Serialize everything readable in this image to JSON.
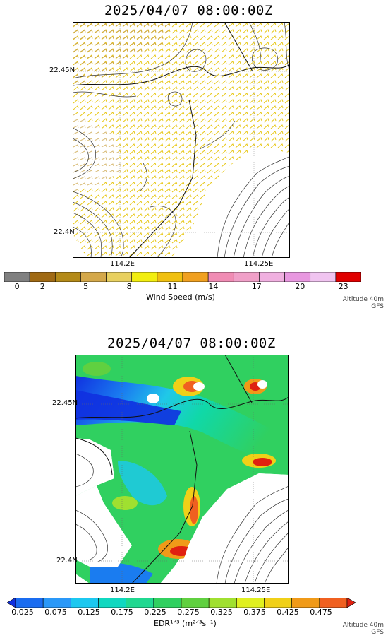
{
  "panels": [
    {
      "title": "2025/04/07  08:00:00Z",
      "lat_labels": [
        "22.45N",
        "22.4N"
      ],
      "lon_labels": [
        "114.2E",
        "114.25E"
      ],
      "colorbar": {
        "ticks": [
          "0",
          "2",
          "5",
          "8",
          "11",
          "14",
          "17",
          "20",
          "23"
        ],
        "colors": [
          "#808080",
          "#a06a14",
          "#b48a18",
          "#d4a84a",
          "#e8d060",
          "#f2ee10",
          "#f0c010",
          "#f0a020",
          "#f08cb4",
          "#f0a0c8",
          "#f0b0e0",
          "#e898e0",
          "#f0c4f0",
          "#e00000"
        ],
        "label": "Wind Speed (m/s)"
      },
      "meta": [
        "Altitude 40m",
        "GFS"
      ]
    },
    {
      "title": "2025/04/07  08:00:00Z",
      "lat_labels": [
        "22.45N",
        "22.4N"
      ],
      "lon_labels": [
        "114.2E",
        "114.25E"
      ],
      "colorbar": {
        "ticks": [
          "0.025",
          "0.075",
          "0.125",
          "0.175",
          "0.225",
          "0.275",
          "0.325",
          "0.375",
          "0.425",
          "0.475"
        ],
        "colors": [
          "#1030e0",
          "#1a6cf0",
          "#2a98f8",
          "#1cc8f0",
          "#10d8c0",
          "#20d890",
          "#30d060",
          "#60d040",
          "#a0e030",
          "#e0f020",
          "#f0d018",
          "#f09a18",
          "#f06020",
          "#e02010"
        ],
        "label": "EDR¹ᐟ³  (m²ᐟ³s⁻¹)"
      },
      "meta": [
        "Altitude 40m",
        "GFS"
      ]
    }
  ]
}
